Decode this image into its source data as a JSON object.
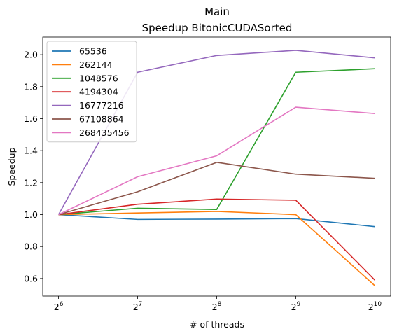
{
  "chart_data": {
    "type": "line",
    "title": "Main",
    "subtitle": "Speedup BitonicCUDASorted",
    "xlabel": "# of threads",
    "ylabel": "Speedup",
    "x": [
      64,
      128,
      256,
      512,
      1024
    ],
    "x_scale": "log2",
    "x_ticks": [
      {
        "base": "2",
        "exp": "6"
      },
      {
        "base": "2",
        "exp": "7"
      },
      {
        "base": "2",
        "exp": "8"
      },
      {
        "base": "2",
        "exp": "9"
      },
      {
        "base": "2",
        "exp": "10"
      }
    ],
    "ylim": [
      0.49,
      2.11
    ],
    "y_ticks": [
      "0.6",
      "0.8",
      "1.0",
      "1.2",
      "1.4",
      "1.6",
      "1.8",
      "2.0"
    ],
    "grid": false,
    "legend_position": "top-left",
    "series": [
      {
        "name": "65536",
        "color": "#1f77b4",
        "values": [
          1.0,
          0.97,
          0.972,
          0.975,
          0.925
        ]
      },
      {
        "name": "262144",
        "color": "#ff7f0e",
        "values": [
          1.0,
          1.01,
          1.02,
          1.0,
          0.555
        ]
      },
      {
        "name": "1048576",
        "color": "#2ca02c",
        "values": [
          1.0,
          1.04,
          1.032,
          1.89,
          1.912
        ]
      },
      {
        "name": "4194304",
        "color": "#d62728",
        "values": [
          1.0,
          1.065,
          1.097,
          1.09,
          0.59
        ]
      },
      {
        "name": "16777216",
        "color": "#9467bd",
        "values": [
          1.0,
          1.89,
          1.995,
          2.027,
          1.98
        ]
      },
      {
        "name": "67108864",
        "color": "#8c564b",
        "values": [
          1.0,
          1.143,
          1.327,
          1.253,
          1.227
        ]
      },
      {
        "name": "268435456",
        "color": "#e377c2",
        "values": [
          1.0,
          1.237,
          1.368,
          1.672,
          1.632
        ]
      }
    ]
  }
}
